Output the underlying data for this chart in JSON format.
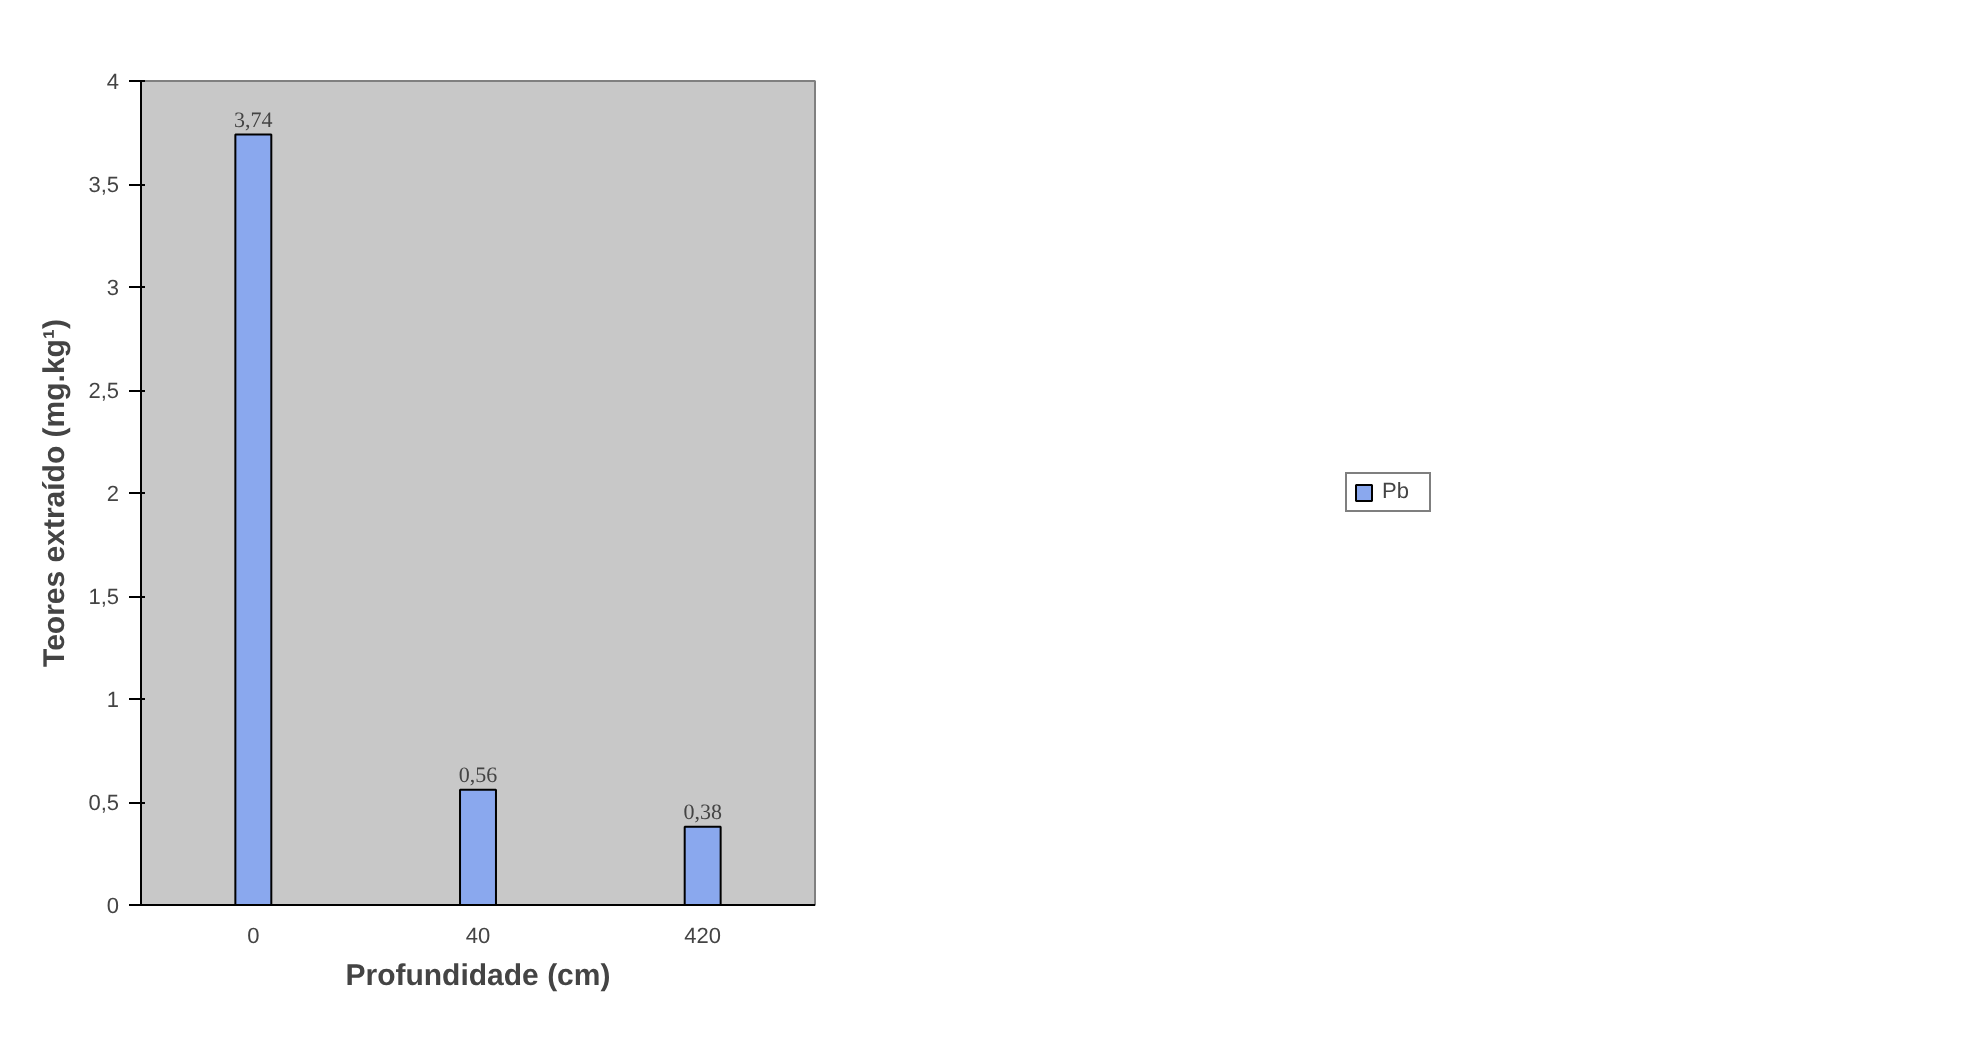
{
  "chart_data": {
    "type": "bar",
    "xlabel": "Profundidade (cm)",
    "ylabel": "Teores extraído (mg.kg¹)",
    "categories": [
      "0",
      "40",
      "420"
    ],
    "series": [
      {
        "name": "Pb",
        "color": "#8aa8ee",
        "values": [
          3.74,
          0.56,
          0.38
        ],
        "value_labels": [
          "3,74",
          "0,56",
          "0,38"
        ]
      }
    ],
    "ylim": [
      0,
      4
    ],
    "yticks": [
      0,
      {
        "value": 0.5,
        "label": "0,5"
      },
      1,
      {
        "value": 1.5,
        "label": "1,5"
      },
      2,
      {
        "value": 2.5,
        "label": "2,5"
      },
      3,
      {
        "value": 3.5,
        "label": "3,5"
      },
      4
    ],
    "grid": false,
    "legend": "right"
  }
}
